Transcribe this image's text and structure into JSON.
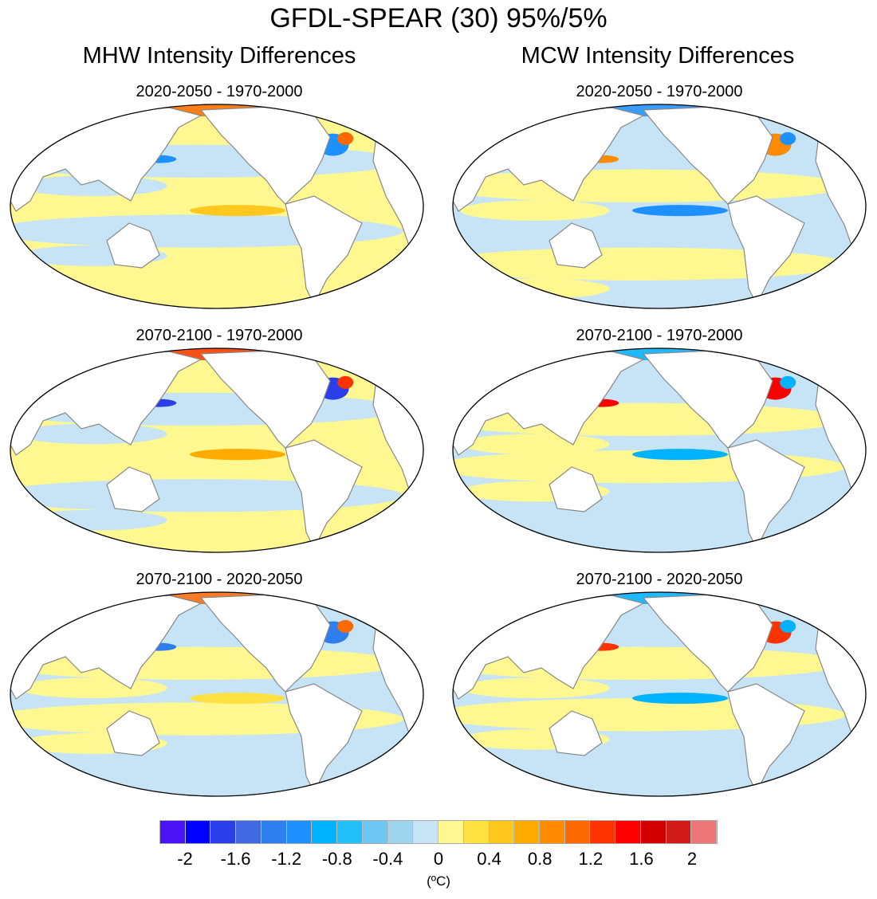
{
  "title": "GFDL-SPEAR (30) 95%/5%",
  "columns": [
    {
      "title": "MHW Intensity Differences",
      "panels": [
        "2020-2050 - 1970-2000",
        "2070-2100 - 1970-2000",
        "2070-2100 - 2020-2050"
      ]
    },
    {
      "title": "MCW Intensity Differences",
      "panels": [
        "2020-2050 - 1970-2000",
        "2070-2100 - 1970-2000",
        "2070-2100 - 2020-2050"
      ]
    }
  ],
  "colorbar": {
    "labels": [
      "-2",
      "-1.6",
      "-1.2",
      "-0.8",
      "-0.4",
      "0",
      "0.4",
      "0.8",
      "1.2",
      "1.6",
      "2"
    ],
    "unit": "(ºC)",
    "colors": [
      "#4a14f6",
      "#0000ff",
      "#2a3fea",
      "#4169e1",
      "#2e7ef0",
      "#1e90ff",
      "#00b2ff",
      "#22c0fb",
      "#6ec6f2",
      "#a0d5f0",
      "#c6e4f5",
      "#fff890",
      "#ffe242",
      "#ffc81e",
      "#ffab00",
      "#ff8c00",
      "#ff6a00",
      "#ff3300",
      "#ff0000",
      "#d40000",
      "#d21c1c",
      "#ee7676"
    ]
  }
}
